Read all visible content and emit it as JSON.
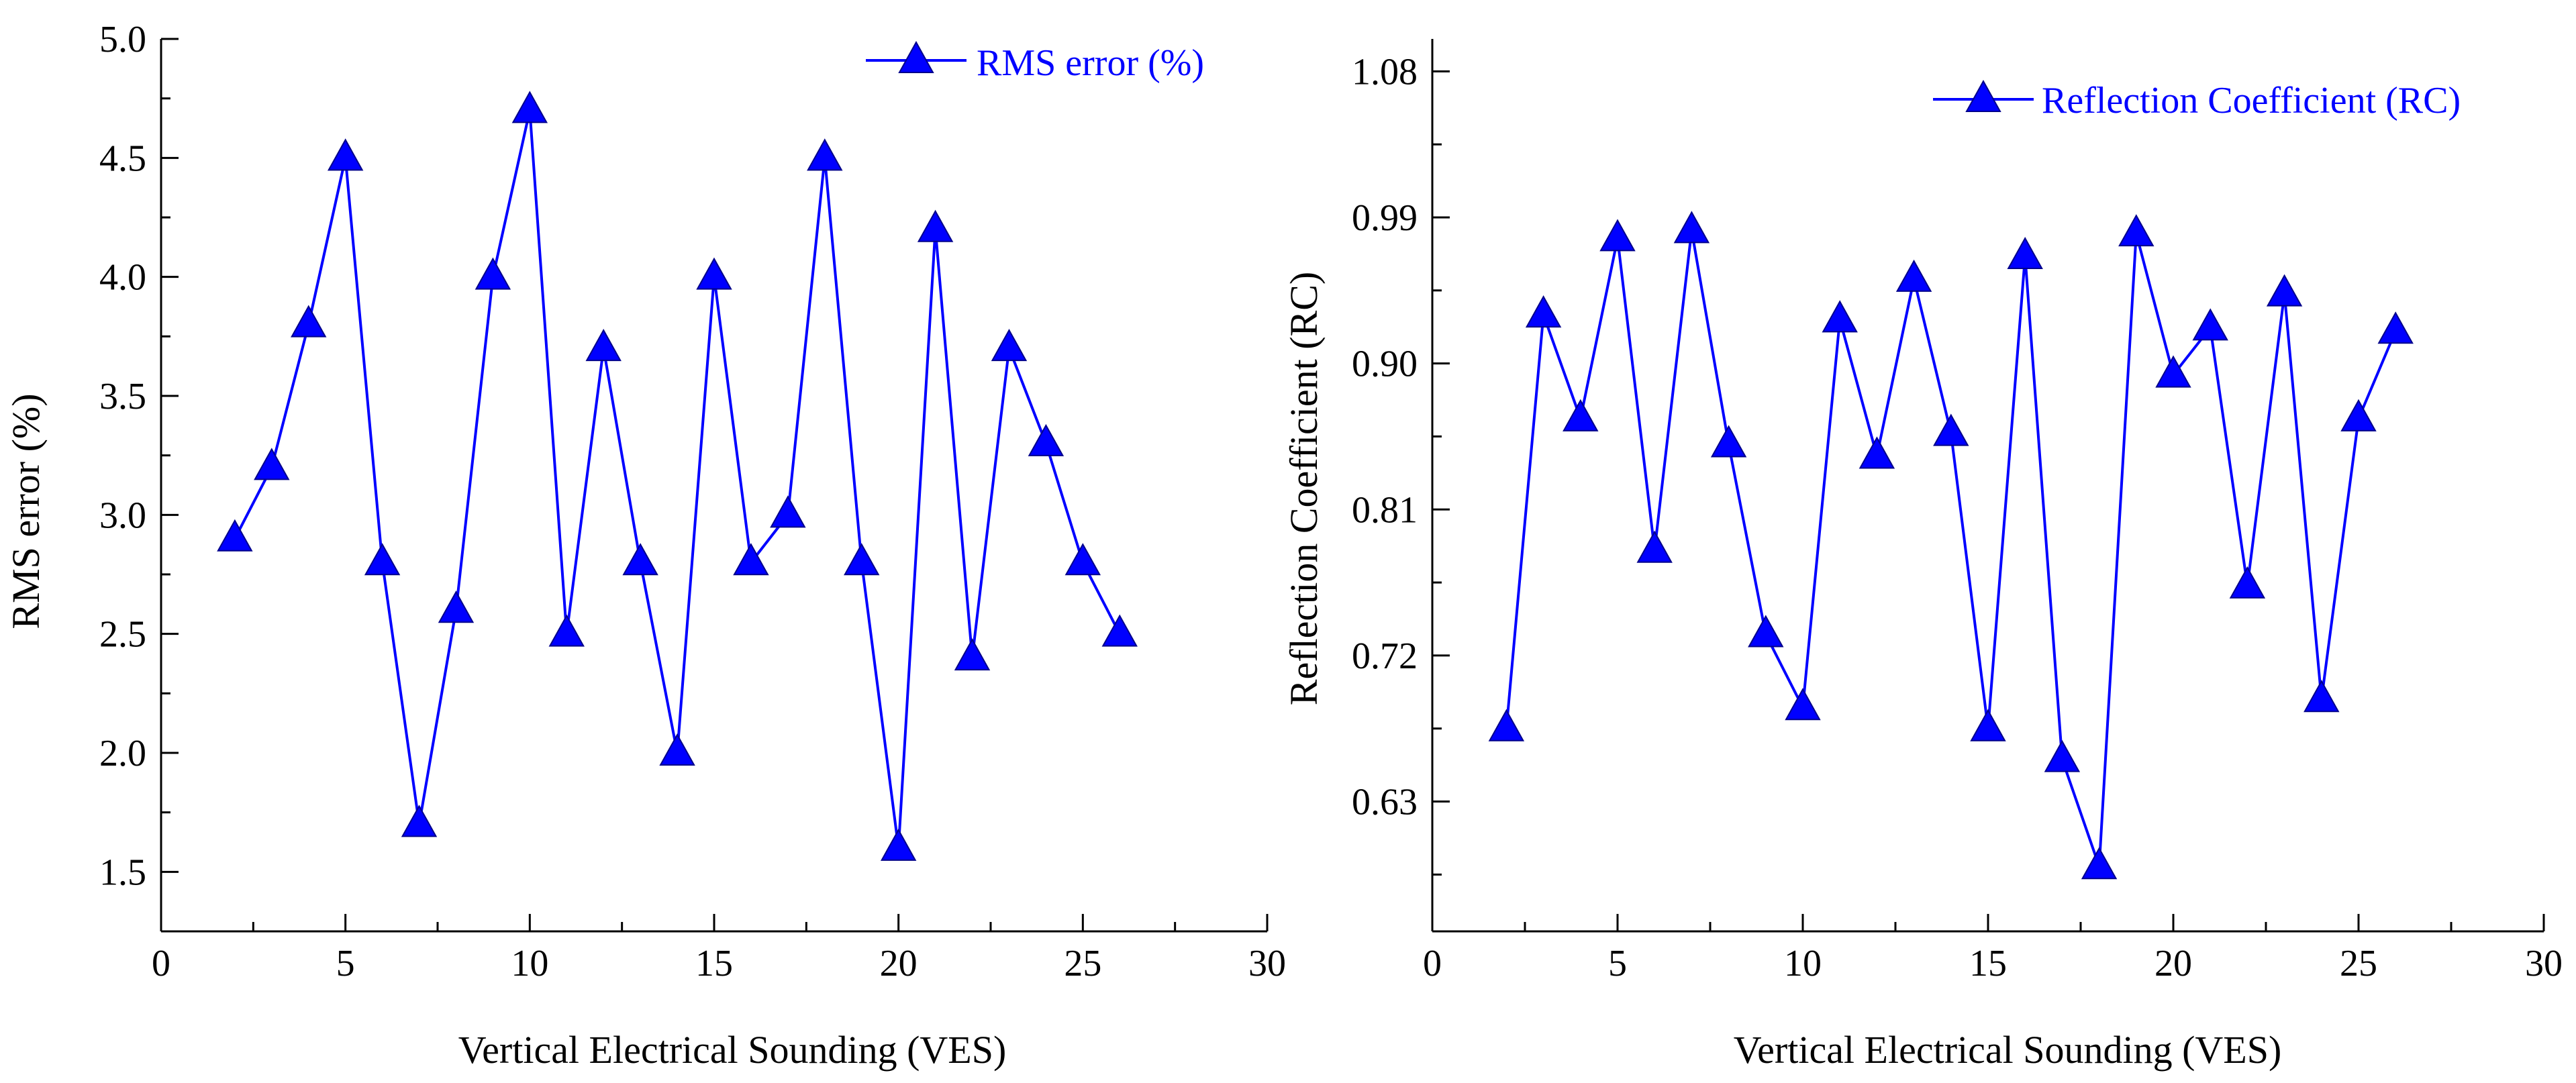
{
  "colors": {
    "series": "#0000ff",
    "axis": "#000000",
    "background": "#ffffff"
  },
  "chart_data": [
    {
      "type": "line",
      "marker": "triangle",
      "title": "",
      "xlabel": "Vertical Electrical Sounding (VES)",
      "ylabel": "RMS error (%)",
      "xlim": [
        0,
        30
      ],
      "ylim": [
        1.25,
        5.0
      ],
      "xticks": [
        0,
        5,
        10,
        15,
        20,
        25,
        30
      ],
      "xtick_labels": [
        "0",
        "5",
        "10",
        "15",
        "20",
        "25",
        "30"
      ],
      "yticks": [
        1.5,
        2.0,
        2.5,
        3.0,
        3.5,
        4.0,
        4.5,
        5.0
      ],
      "ytick_labels": [
        "1.5",
        "2.0",
        "2.5",
        "3.0",
        "3.5",
        "4.0",
        "4.5",
        "5.0"
      ],
      "grid": false,
      "legend_position": "top-right",
      "series": [
        {
          "name": "RMS error (%)",
          "x": [
            2,
            3,
            4,
            5,
            6,
            7,
            8,
            9,
            10,
            11,
            12,
            13,
            14,
            15,
            16,
            17,
            18,
            19,
            20,
            21,
            22,
            23,
            24,
            25,
            26
          ],
          "values": [
            2.9,
            3.2,
            3.8,
            4.5,
            2.8,
            1.7,
            2.6,
            4.0,
            4.7,
            2.5,
            3.7,
            2.8,
            2.0,
            4.0,
            2.8,
            3.0,
            4.5,
            2.8,
            1.6,
            4.2,
            2.4,
            3.7,
            3.3,
            2.8,
            2.5
          ]
        }
      ]
    },
    {
      "type": "line",
      "marker": "triangle",
      "title": "",
      "xlabel": "Vertical Electrical Sounding (VES)",
      "ylabel": "Reflection Coefficient (RC)",
      "xlim": [
        0,
        30
      ],
      "ylim": [
        0.55,
        1.1
      ],
      "xticks": [
        0,
        5,
        10,
        15,
        20,
        25,
        30
      ],
      "xtick_labels": [
        "0",
        "5",
        "10",
        "15",
        "20",
        "25",
        "30"
      ],
      "yticks": [
        0.63,
        0.72,
        0.81,
        0.9,
        0.99,
        1.08
      ],
      "ytick_labels": [
        "0.63",
        "0.72",
        "0.81",
        "0.90",
        "0.99",
        "1.08"
      ],
      "grid": false,
      "legend_position": "top-right",
      "series": [
        {
          "name": "Reflection Coefficient (RC)",
          "x": [
            2,
            3,
            4,
            5,
            6,
            7,
            8,
            9,
            10,
            11,
            12,
            13,
            14,
            15,
            16,
            17,
            18,
            19,
            20,
            21,
            22,
            23,
            24,
            25,
            26
          ],
          "values": [
            0.675,
            0.93,
            0.866,
            0.977,
            0.785,
            0.982,
            0.85,
            0.733,
            0.688,
            0.927,
            0.843,
            0.952,
            0.857,
            0.675,
            0.966,
            0.656,
            0.59,
            0.98,
            0.893,
            0.922,
            0.763,
            0.943,
            0.693,
            0.866,
            0.92
          ]
        }
      ]
    }
  ]
}
